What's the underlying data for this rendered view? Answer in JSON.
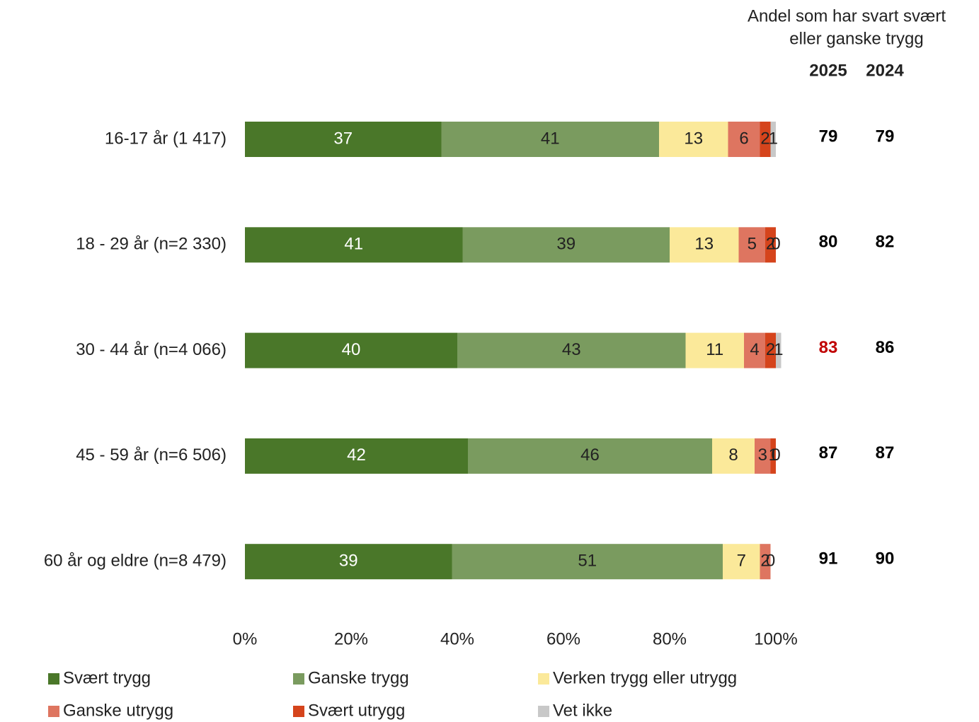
{
  "chart_data": {
    "type": "stacked_bar_horizontal",
    "annotation_lines": [
      "Andel som har svart svært",
      "eller ganske trygg"
    ],
    "categories": [
      "16-17 år (1 417)",
      "18 - 29 år (n=2 330)",
      "30 - 44 år (n=4 066)",
      "45 - 59 år (n=6 506)",
      "60 år og eldre (n=8 479)"
    ],
    "series": [
      {
        "name": "Svært trygg",
        "color": "#4a7729",
        "label_color": "#ffffff",
        "values": [
          37,
          41,
          40,
          42,
          39
        ]
      },
      {
        "name": "Ganske trygg",
        "color": "#7a9b5f",
        "label_color": "#222222",
        "values": [
          41,
          39,
          43,
          46,
          51
        ]
      },
      {
        "name": "Verken trygg eller utrygg",
        "color": "#fbe99a",
        "label_color": "#222222",
        "values": [
          13,
          13,
          11,
          8,
          7
        ]
      },
      {
        "name": "Ganske utrygg",
        "color": "#de7560",
        "label_color": "#222222",
        "values": [
          6,
          5,
          4,
          3,
          2
        ]
      },
      {
        "name": "Svært utrygg",
        "color": "#d5441c",
        "label_color": "#222222",
        "values": [
          2,
          2,
          2,
          1,
          0
        ]
      },
      {
        "name": "Vet ikke",
        "color": "#c8c8c8",
        "label_color": "#222222",
        "values": [
          1,
          0,
          1,
          0,
          null
        ]
      }
    ],
    "xlim": [
      0,
      100
    ],
    "xticks": [
      {
        "value": 0,
        "label": "0%"
      },
      {
        "value": 20,
        "label": "20%"
      },
      {
        "value": 40,
        "label": "40%"
      },
      {
        "value": 60,
        "label": "60%"
      },
      {
        "value": 80,
        "label": "80%"
      },
      {
        "value": 100,
        "label": "100%"
      }
    ],
    "columns": [
      {
        "name": "2025",
        "values": [
          79,
          80,
          83,
          87,
          91
        ],
        "colors": [
          "#000000",
          "#000000",
          "#c00000",
          "#000000",
          "#000000"
        ]
      },
      {
        "name": "2024",
        "values": [
          79,
          82,
          86,
          87,
          90
        ],
        "colors": [
          "#000000",
          "#000000",
          "#000000",
          "#000000",
          "#000000"
        ]
      }
    ],
    "legend": "bottom"
  }
}
